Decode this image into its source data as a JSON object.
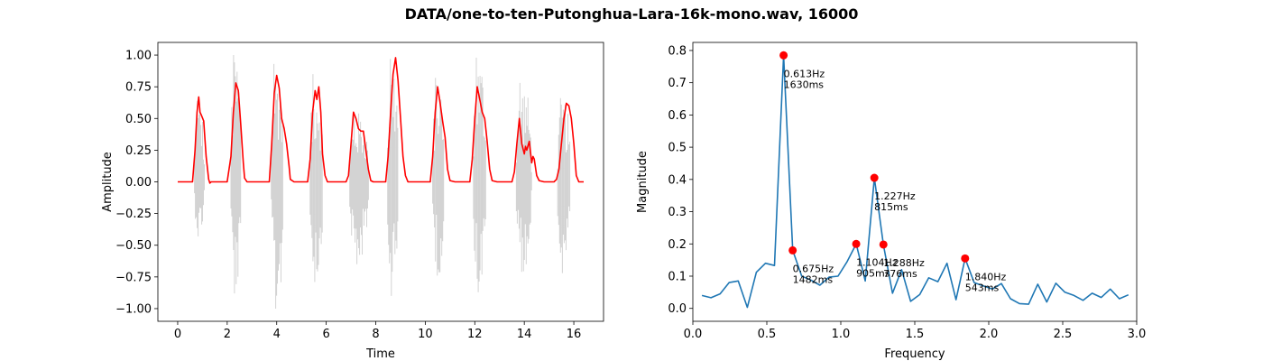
{
  "figure": {
    "title": "DATA/one-to-ten-Putonghua-Lara-16k-mono.wav, 16000"
  },
  "chart_data": [
    {
      "type": "line",
      "xlabel": "Time",
      "ylabel": "Amplitude",
      "xlim": [
        -0.8,
        17.2
      ],
      "ylim": [
        -1.1,
        1.1
      ],
      "xticks": [
        0,
        2,
        4,
        6,
        8,
        10,
        12,
        14,
        16
      ],
      "yticks": [
        -1.0,
        -0.75,
        -0.5,
        -0.25,
        0.0,
        0.25,
        0.5,
        0.75,
        1.0
      ],
      "xtick_labels": [
        "0",
        "2",
        "4",
        "6",
        "8",
        "10",
        "12",
        "14",
        "16"
      ],
      "ytick_labels": [
        "−1.00",
        "−0.75",
        "−0.50",
        "−0.25",
        "0.00",
        "0.25",
        "0.50",
        "0.75",
        "1.00"
      ],
      "waveform_color": "#d3d3d3",
      "envelope_color": "#ff0000",
      "waveform_segments": [
        {
          "start": 0.68,
          "end": 1.15,
          "max": 0.64,
          "min": -0.43
        },
        {
          "start": 2.15,
          "end": 2.65,
          "max": 1.0,
          "min": -0.88
        },
        {
          "start": 3.78,
          "end": 4.35,
          "max": 0.93,
          "min": -1.0
        },
        {
          "start": 5.35,
          "end": 5.95,
          "max": 0.85,
          "min": -0.79
        },
        {
          "start": 6.95,
          "end": 7.85,
          "max": 0.55,
          "min": -0.65
        },
        {
          "start": 8.48,
          "end": 9.0,
          "max": 0.97,
          "min": -0.9
        },
        {
          "start": 10.3,
          "end": 10.85,
          "max": 0.82,
          "min": -0.74
        },
        {
          "start": 11.95,
          "end": 12.55,
          "max": 0.98,
          "min": -0.87
        },
        {
          "start": 13.68,
          "end": 14.4,
          "max": 0.78,
          "min": -0.71
        },
        {
          "start": 15.35,
          "end": 15.95,
          "max": 0.66,
          "min": -0.72
        }
      ],
      "envelope": {
        "x": [
          0.0,
          0.6,
          0.7,
          0.78,
          0.85,
          0.9,
          0.95,
          1.05,
          1.15,
          1.25,
          1.3,
          1.35,
          1.5,
          2.0,
          2.15,
          2.25,
          2.35,
          2.45,
          2.55,
          2.65,
          2.7,
          2.8,
          3.0,
          3.7,
          3.8,
          3.9,
          4.0,
          4.1,
          4.2,
          4.3,
          4.4,
          4.5,
          4.55,
          4.7,
          5.0,
          5.25,
          5.35,
          5.45,
          5.55,
          5.62,
          5.7,
          5.78,
          5.85,
          5.95,
          6.05,
          6.15,
          6.3,
          6.8,
          6.9,
          7.0,
          7.1,
          7.2,
          7.3,
          7.4,
          7.5,
          7.7,
          7.8,
          7.9,
          8.0,
          8.2,
          8.4,
          8.5,
          8.6,
          8.7,
          8.8,
          8.9,
          9.0,
          9.1,
          9.2,
          9.3,
          9.5,
          10.2,
          10.3,
          10.4,
          10.5,
          10.6,
          10.7,
          10.8,
          10.9,
          11.0,
          11.2,
          11.8,
          11.9,
          12.0,
          12.1,
          12.2,
          12.3,
          12.4,
          12.5,
          12.6,
          12.7,
          12.9,
          13.5,
          13.6,
          13.7,
          13.8,
          13.9,
          14.0,
          14.05,
          14.1,
          14.2,
          14.3,
          14.35,
          14.4,
          14.5,
          14.6,
          14.8,
          15.2,
          15.3,
          15.4,
          15.5,
          15.6,
          15.7,
          15.8,
          15.9,
          16.0,
          16.1,
          16.2,
          16.4
        ],
        "y": [
          0.0,
          0.0,
          0.25,
          0.55,
          0.67,
          0.55,
          0.53,
          0.48,
          0.2,
          0.02,
          -0.01,
          0.0,
          0.0,
          0.0,
          0.2,
          0.55,
          0.78,
          0.72,
          0.45,
          0.15,
          0.03,
          0.0,
          0.0,
          0.0,
          0.3,
          0.7,
          0.84,
          0.74,
          0.5,
          0.42,
          0.3,
          0.12,
          0.02,
          0.0,
          0.0,
          0.0,
          0.18,
          0.55,
          0.72,
          0.65,
          0.75,
          0.55,
          0.22,
          0.05,
          0.0,
          0.0,
          0.0,
          0.0,
          0.05,
          0.3,
          0.55,
          0.5,
          0.42,
          0.4,
          0.4,
          0.1,
          0.01,
          0.0,
          0.0,
          0.0,
          0.0,
          0.2,
          0.55,
          0.85,
          0.98,
          0.8,
          0.5,
          0.2,
          0.05,
          0.0,
          0.0,
          0.0,
          0.2,
          0.55,
          0.75,
          0.62,
          0.48,
          0.35,
          0.1,
          0.01,
          0.0,
          0.0,
          0.18,
          0.5,
          0.75,
          0.65,
          0.55,
          0.5,
          0.32,
          0.1,
          0.01,
          0.0,
          0.0,
          0.08,
          0.3,
          0.5,
          0.3,
          0.22,
          0.28,
          0.25,
          0.32,
          0.15,
          0.2,
          0.18,
          0.05,
          0.01,
          0.0,
          0.0,
          0.02,
          0.1,
          0.3,
          0.5,
          0.62,
          0.6,
          0.5,
          0.3,
          0.05,
          0.0,
          0.0
        ]
      }
    },
    {
      "type": "line",
      "xlabel": "Frequency",
      "ylabel": "Magnitude",
      "xlim": [
        0.0,
        3.0
      ],
      "ylim": [
        -0.04,
        0.825
      ],
      "xticks": [
        0.0,
        0.5,
        1.0,
        1.5,
        2.0,
        2.5,
        3.0
      ],
      "yticks": [
        0.0,
        0.1,
        0.2,
        0.3,
        0.4,
        0.5,
        0.6,
        0.7,
        0.8
      ],
      "xtick_labels": [
        "0.0",
        "0.5",
        "1.0",
        "1.5",
        "2.0",
        "2.5",
        "3.0"
      ],
      "ytick_labels": [
        "0.0",
        "0.1",
        "0.2",
        "0.3",
        "0.4",
        "0.5",
        "0.6",
        "0.7",
        "0.8"
      ],
      "line_color": "#1f77b4",
      "peak_color": "#ff0000",
      "x": [
        0.0613,
        0.1227,
        0.184,
        0.2454,
        0.3067,
        0.368,
        0.4294,
        0.4907,
        0.552,
        0.6134,
        0.6747,
        0.736,
        0.7974,
        0.8587,
        0.9201,
        0.9814,
        1.0427,
        1.1041,
        1.1654,
        1.2267,
        1.2881,
        1.3494,
        1.4108,
        1.4721,
        1.5334,
        1.5948,
        1.6561,
        1.7174,
        1.7788,
        1.8401,
        1.9015,
        1.9628,
        2.0241,
        2.0855,
        2.1468,
        2.2081,
        2.2695,
        2.3308,
        2.3922,
        2.4535,
        2.5148,
        2.5762,
        2.6375,
        2.6988,
        2.7602,
        2.8215,
        2.8829,
        2.9442
      ],
      "y": [
        0.04,
        0.033,
        0.045,
        0.08,
        0.085,
        0.003,
        0.112,
        0.14,
        0.133,
        0.785,
        0.18,
        0.1,
        0.088,
        0.072,
        0.097,
        0.1,
        0.145,
        0.2,
        0.085,
        0.405,
        0.198,
        0.047,
        0.12,
        0.022,
        0.043,
        0.095,
        0.083,
        0.14,
        0.027,
        0.155,
        0.08,
        0.07,
        0.06,
        0.077,
        0.03,
        0.015,
        0.013,
        0.075,
        0.02,
        0.078,
        0.05,
        0.04,
        0.025,
        0.047,
        0.034,
        0.06,
        0.03,
        0.042
      ],
      "peaks": [
        {
          "x": 0.6134,
          "y": 0.785,
          "label_hz": "0.613Hz",
          "label_ms": "1630ms"
        },
        {
          "x": 0.6747,
          "y": 0.18,
          "label_hz": "0.675Hz",
          "label_ms": "1482ms"
        },
        {
          "x": 1.1041,
          "y": 0.2,
          "label_hz": "1.104Hz",
          "label_ms": "905ms"
        },
        {
          "x": 1.2267,
          "y": 0.405,
          "label_hz": "1.227Hz",
          "label_ms": "815ms"
        },
        {
          "x": 1.2881,
          "y": 0.198,
          "label_hz": "1.288Hz",
          "label_ms": "776ms"
        },
        {
          "x": 1.8401,
          "y": 0.155,
          "label_hz": "1.840Hz",
          "label_ms": "543ms"
        }
      ]
    }
  ]
}
